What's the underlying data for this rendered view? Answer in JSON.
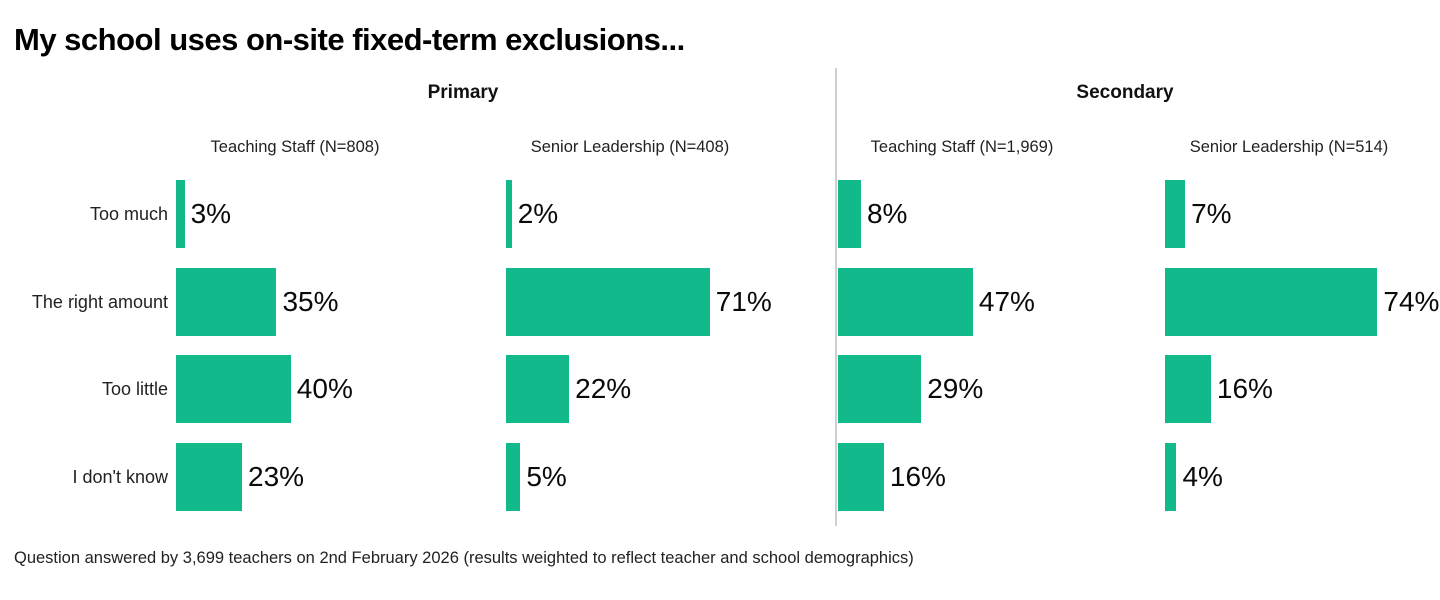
{
  "title": "My school uses on-site fixed-term exclusions...",
  "footer": "Question answered by 3,699 teachers on 2nd February 2026 (results weighted to reflect teacher and school demographics)",
  "colors": {
    "bar": "#12b98a",
    "divider": "#cfcfcf",
    "title_text": "#000000",
    "body_text": "#222222"
  },
  "chart_data": {
    "type": "bar",
    "orientation": "horizontal",
    "value_suffix": "%",
    "xlim": [
      0,
      100
    ],
    "title": "My school uses on-site fixed-term exclusions...",
    "categories": [
      "Too much",
      "The right amount",
      "Too little",
      "I don't know"
    ],
    "groups": [
      {
        "label": "Primary",
        "panels": [
          {
            "subtitle": "Teaching Staff (N=808)",
            "values": [
              3,
              35,
              40,
              23
            ]
          },
          {
            "subtitle": "Senior Leadership (N=408)",
            "values": [
              2,
              71,
              22,
              5
            ]
          }
        ]
      },
      {
        "label": "Secondary",
        "panels": [
          {
            "subtitle": "Teaching Staff (N=1,969)",
            "values": [
              8,
              47,
              29,
              16
            ]
          },
          {
            "subtitle": "Senior Leadership (N=514)",
            "values": [
              7,
              74,
              16,
              4
            ]
          }
        ]
      }
    ],
    "annotation": "Question answered by 3,699 teachers on 2nd February 2026 (results weighted to reflect teacher and school demographics)"
  }
}
